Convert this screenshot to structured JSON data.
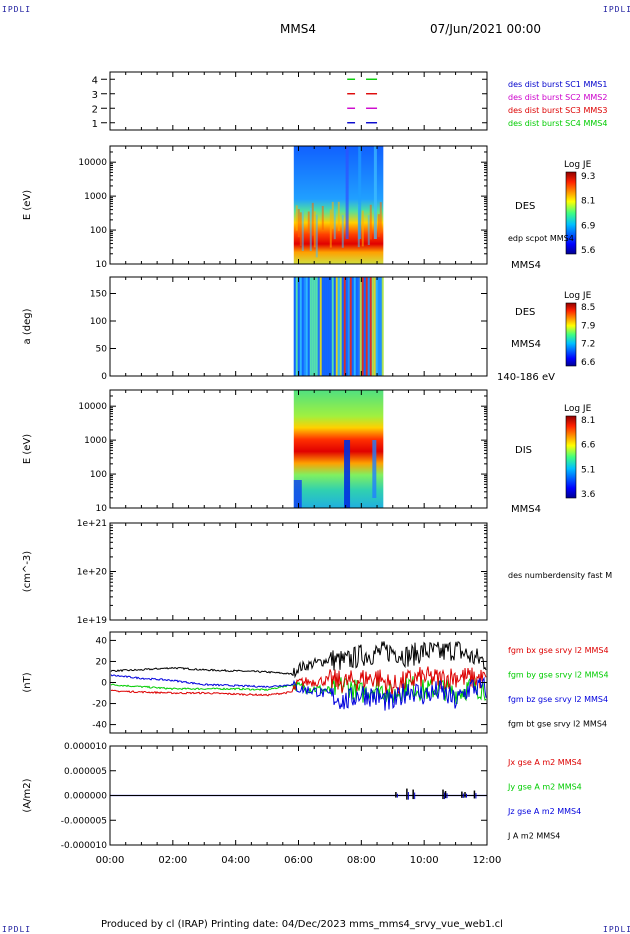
{
  "header": {
    "corner_tl": "IPDLI",
    "corner_tr": "IPDLI",
    "corner_bl": "IPDLI",
    "corner_br": "IPDLI",
    "spacecraft": "MMS4",
    "datetime": "07/Jun/2021 00:00"
  },
  "footer": {
    "text": "Produced by cl (IRAP)   Printing date: 04/Dec/2023   mms_mms4_srvy_vue_web1.cl"
  },
  "colors": {
    "mms1": "#0000cc",
    "mms2": "#cc00cc",
    "mms3": "#dd0000",
    "mms4": "#00cc00",
    "bx": "#dd0000",
    "by": "#00cc00",
    "bz": "#0000dd",
    "bt": "#000000"
  },
  "chart_data": [
    {
      "type": "line",
      "panel": "burst-availability",
      "yticks": [
        "1",
        "2",
        "3",
        "4"
      ],
      "ylim": [
        0.5,
        4.5
      ],
      "segments_hours": [
        [
          7.55,
          7.8
        ],
        [
          8.15,
          8.5
        ]
      ],
      "series": [
        {
          "name": "des dist burst SC1 MMS1",
          "level": 1
        },
        {
          "name": "des dist burst SC2 MMS2",
          "level": 2
        },
        {
          "name": "des dist burst SC3 MMS3",
          "level": 3
        },
        {
          "name": "des dist burst SC4 MMS4",
          "level": 4
        }
      ]
    },
    {
      "type": "heatmap",
      "panel": "des-energy",
      "ylabel": "E (eV)",
      "yscale": "log",
      "ylim": [
        10,
        30000
      ],
      "yticks": [
        "10",
        "100",
        "1000",
        "10000"
      ],
      "data_span_hours": [
        5.85,
        8.7
      ],
      "label": "DES",
      "overlay_label": "edp scpot MMS4",
      "sc_label": "MMS4",
      "colorbar": {
        "title": "Log JE",
        "ticks": [
          "9.3",
          "8.1",
          "6.9",
          "5.6"
        ],
        "range": [
          5.6,
          9.3
        ]
      }
    },
    {
      "type": "heatmap",
      "panel": "des-pitch-angle",
      "ylabel": "a (deg)",
      "ylim": [
        0,
        180
      ],
      "yticks": [
        "0",
        "50",
        "100",
        "150"
      ],
      "data_span_hours": [
        5.85,
        8.7
      ],
      "label": "DES",
      "sc_label": "MMS4",
      "energy_label": "140-186 eV",
      "colorbar": {
        "title": "Log JE",
        "ticks": [
          "8.5",
          "7.9",
          "7.2",
          "6.6"
        ],
        "range": [
          6.6,
          8.5
        ]
      }
    },
    {
      "type": "heatmap",
      "panel": "dis-energy",
      "ylabel": "E (eV)",
      "yscale": "log",
      "ylim": [
        10,
        30000
      ],
      "yticks": [
        "10",
        "100",
        "1000",
        "10000"
      ],
      "data_span_hours": [
        5.85,
        8.7
      ],
      "label": "DIS",
      "sc_label": "MMS4",
      "colorbar": {
        "title": "Log JE",
        "ticks": [
          "8.1",
          "6.6",
          "5.1",
          "3.6"
        ],
        "range": [
          3.6,
          8.1
        ]
      }
    },
    {
      "type": "line",
      "panel": "density",
      "ylabel": "(cm^-3)",
      "yscale": "log",
      "ylim": [
        1e+19,
        1e+21
      ],
      "yticks": [
        "1e+19",
        "1e+20",
        "1e+21"
      ],
      "series": [
        {
          "name": "des numberdensity fast M",
          "values": []
        }
      ]
    },
    {
      "type": "line",
      "panel": "magnetic-field",
      "ylabel": "(nT)",
      "ylim": [
        -48,
        48
      ],
      "yticks": [
        "-40",
        "-20",
        "0",
        "20",
        "40"
      ],
      "series": [
        {
          "name": "fgm bx gse srvy l2 MMS4",
          "color_key": "bx",
          "x": [
            0,
            1,
            2,
            3,
            4,
            5,
            5.8,
            6,
            6.5,
            7,
            7.5,
            8,
            8.5,
            9,
            9.5,
            10,
            10.5,
            11,
            11.5,
            12
          ],
          "y": [
            -8,
            -9,
            -10,
            -10,
            -11,
            -12,
            -9,
            0,
            1,
            2,
            0,
            3,
            5,
            -4,
            2,
            5,
            3,
            6,
            4,
            3
          ]
        },
        {
          "name": "fgm by gse srvy l2 MMS4",
          "color_key": "by",
          "x": [
            0,
            1,
            2,
            3,
            4,
            5,
            5.8,
            6,
            6.5,
            7,
            7.5,
            8,
            8.5,
            9,
            9.5,
            10,
            10.5,
            11,
            11.5,
            12
          ],
          "y": [
            -2,
            -4,
            -6,
            -6,
            -6,
            -7,
            -2,
            -4,
            -6,
            -8,
            -2,
            -10,
            -4,
            -12,
            -2,
            -8,
            -5,
            -10,
            -4,
            -6
          ]
        },
        {
          "name": "fgm bz gse srvy l2 MMS4",
          "color_key": "bz",
          "x": [
            0,
            1,
            2,
            3,
            4,
            5,
            5.8,
            6,
            6.5,
            7,
            7.5,
            8,
            8.5,
            9,
            9.5,
            10,
            10.5,
            11,
            11.5,
            12
          ],
          "y": [
            7,
            4,
            2,
            -2,
            -3,
            -4,
            -2,
            -6,
            -8,
            -12,
            -18,
            -10,
            -14,
            -20,
            -6,
            -12,
            -8,
            -18,
            -4,
            -6
          ]
        },
        {
          "name": "fgm bt gse srvy l2 MMS4",
          "color_key": "bt",
          "x": [
            0,
            1,
            2,
            3,
            4,
            5,
            5.8,
            6,
            6.5,
            7,
            7.5,
            8,
            8.5,
            9,
            9.5,
            10,
            10.5,
            11,
            11.5,
            12
          ],
          "y": [
            11,
            12,
            14,
            12,
            11,
            10,
            8,
            14,
            18,
            22,
            20,
            26,
            28,
            30,
            25,
            30,
            28,
            32,
            24,
            20
          ]
        }
      ]
    },
    {
      "type": "line",
      "panel": "current-density",
      "ylabel": "(A/m2)",
      "ylim": [
        -1e-05,
        1e-05
      ],
      "yticks": [
        "-0.000010",
        "-0.000005",
        "0.000000",
        "0.000005",
        "0.000010"
      ],
      "xticks": [
        "00:00",
        "02:00",
        "04:00",
        "06:00",
        "08:00",
        "10:00",
        "12:00"
      ],
      "xlim": [
        0,
        12
      ],
      "series": [
        {
          "name": "Jx gse A m2 MMS4",
          "color_key": "bx",
          "values": []
        },
        {
          "name": "Jy gse A m2 MMS4",
          "color_key": "by",
          "values": []
        },
        {
          "name": "Jz gse A m2 MMS4",
          "color_key": "bz",
          "values": []
        },
        {
          "name": "J A m2 MMS4",
          "color_key": "bt",
          "spikes_hours": [
            9.1,
            9.45,
            9.65,
            10.6,
            10.68,
            11.2,
            11.3,
            11.6
          ],
          "spike_values": [
            7e-07,
            1.4e-06,
            1.2e-06,
            1.2e-06,
            9e-07,
            8e-07,
            7e-07,
            1e-06
          ]
        }
      ]
    }
  ]
}
